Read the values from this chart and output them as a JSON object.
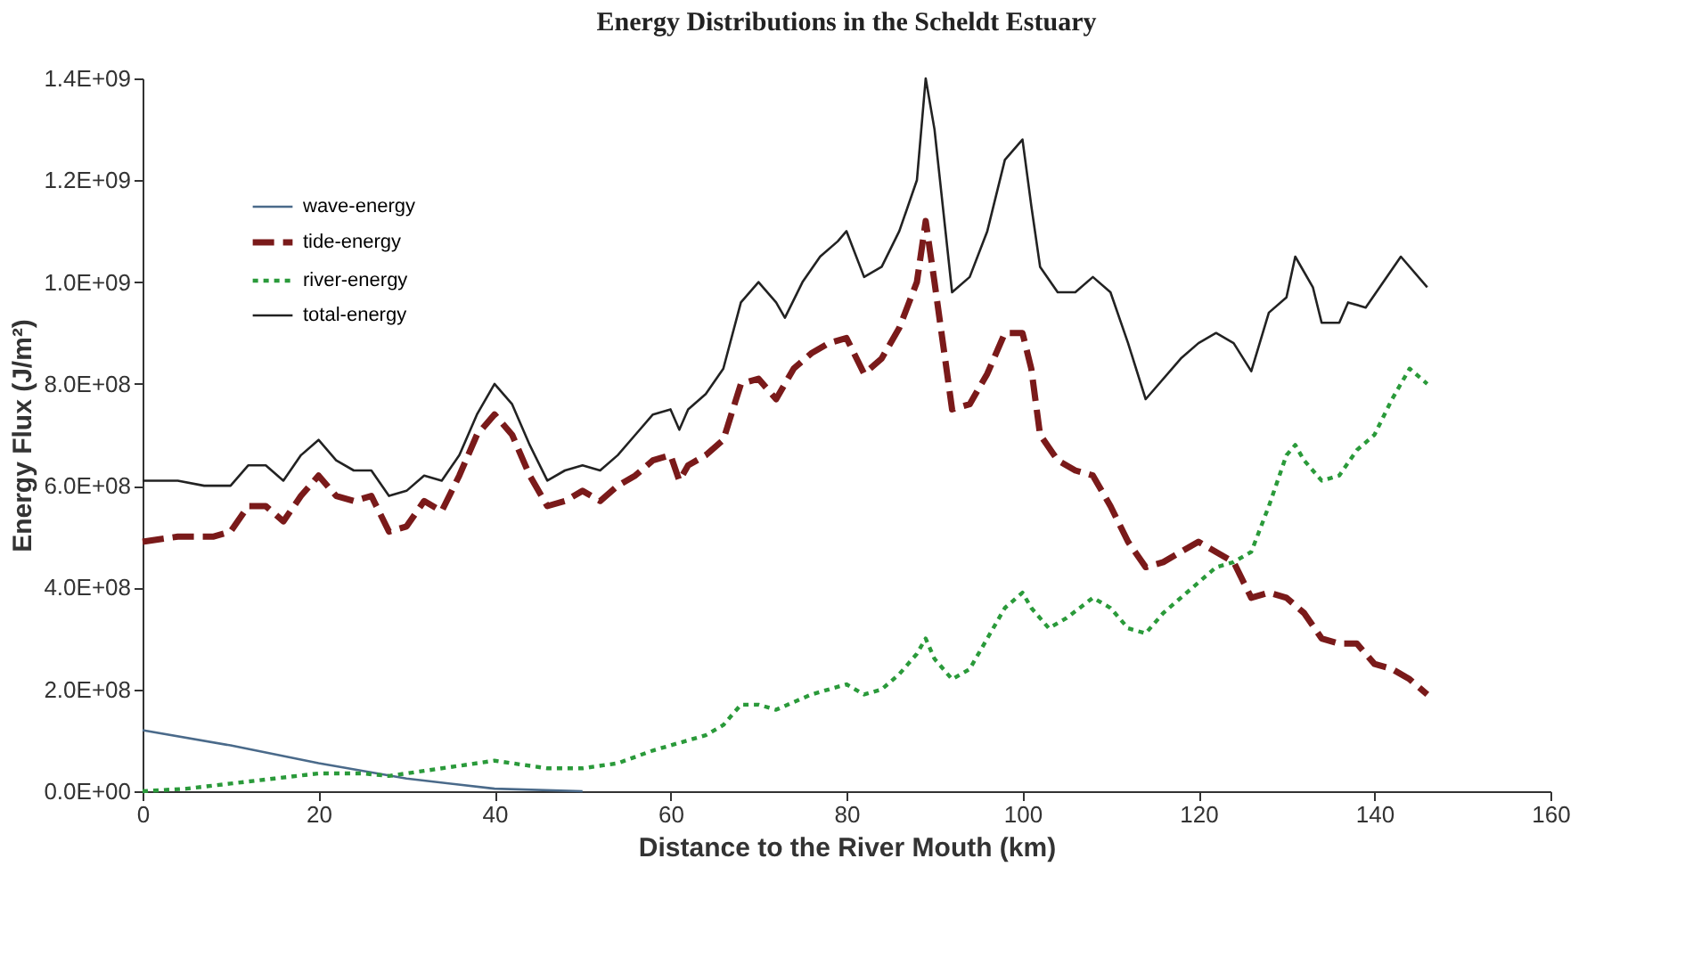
{
  "chart_data": {
    "type": "line",
    "title": "Energy Distributions in the Scheldt Estuary",
    "xlabel": "Distance to the River Mouth (km)",
    "ylabel": "Energy Flux (J/m²)",
    "xlim": [
      0,
      160
    ],
    "xticks": [
      0,
      20,
      40,
      60,
      80,
      100,
      120,
      140,
      160
    ],
    "ylim": [
      0,
      1400000000.0
    ],
    "yticks": [
      {
        "value": 0,
        "label": "0.0E+00"
      },
      {
        "value": 200000000.0,
        "label": "2.0E+08"
      },
      {
        "value": 400000000.0,
        "label": "4.0E+08"
      },
      {
        "value": 600000000.0,
        "label": "6.0E+08"
      },
      {
        "value": 800000000.0,
        "label": "8.0E+08"
      },
      {
        "value": 1000000000.0,
        "label": "1.0E+09"
      },
      {
        "value": 1200000000.0,
        "label": "1.2E+09"
      },
      {
        "value": 1400000000.0,
        "label": "1.4E+09"
      }
    ],
    "grid": false,
    "legend": "top left",
    "marker": "none",
    "series": [
      {
        "name": "wave-energy",
        "color": "#4a6a8a",
        "line_style": "solid",
        "x": [
          0,
          10,
          20,
          30,
          40,
          50
        ],
        "values": [
          120000000.0,
          90000000.0,
          55000000.0,
          25000000.0,
          5000000.0,
          0
        ]
      },
      {
        "name": "tide-energy",
        "color": "#7a1a1a",
        "line_style": "dashed",
        "x": [
          0,
          4,
          8,
          10,
          12,
          14,
          16,
          18,
          20,
          22,
          24,
          26,
          28,
          30,
          32,
          34,
          36,
          38,
          40,
          42,
          44,
          46,
          48,
          50,
          52,
          54,
          56,
          58,
          60,
          61,
          62,
          64,
          66,
          68,
          70,
          72,
          74,
          76,
          78,
          80,
          82,
          84,
          86,
          88,
          89,
          90,
          92,
          94,
          96,
          98,
          100,
          101,
          102,
          104,
          106,
          108,
          110,
          112,
          114,
          116,
          118,
          120,
          122,
          124,
          126,
          128,
          130,
          132,
          134,
          136,
          138,
          140,
          142,
          144,
          146
        ],
        "values": [
          490000000.0,
          500000000.0,
          500000000.0,
          510000000.0,
          560000000.0,
          560000000.0,
          530000000.0,
          580000000.0,
          620000000.0,
          580000000.0,
          570000000.0,
          580000000.0,
          510000000.0,
          520000000.0,
          570000000.0,
          550000000.0,
          620000000.0,
          700000000.0,
          740000000.0,
          700000000.0,
          620000000.0,
          560000000.0,
          570000000.0,
          590000000.0,
          570000000.0,
          600000000.0,
          620000000.0,
          650000000.0,
          660000000.0,
          610000000.0,
          640000000.0,
          660000000.0,
          690000000.0,
          800000000.0,
          810000000.0,
          770000000.0,
          830000000.0,
          860000000.0,
          880000000.0,
          890000000.0,
          820000000.0,
          850000000.0,
          910000000.0,
          1000000000.0,
          1120000000.0,
          1000000000.0,
          750000000.0,
          760000000.0,
          820000000.0,
          900000000.0,
          900000000.0,
          830000000.0,
          700000000.0,
          650000000.0,
          630000000.0,
          620000000.0,
          560000000.0,
          490000000.0,
          440000000.0,
          450000000.0,
          470000000.0,
          490000000.0,
          470000000.0,
          450000000.0,
          380000000.0,
          390000000.0,
          380000000.0,
          350000000.0,
          300000000.0,
          290000000.0,
          290000000.0,
          250000000.0,
          240000000.0,
          220000000.0,
          190000000.0
        ]
      },
      {
        "name": "river-energy",
        "color": "#2a9a3a",
        "line_style": "dotted",
        "x": [
          0,
          5,
          10,
          15,
          20,
          25,
          28,
          32,
          36,
          40,
          42,
          46,
          50,
          54,
          58,
          60,
          62,
          64,
          66,
          68,
          70,
          72,
          76,
          80,
          82,
          84,
          86,
          88,
          89,
          90,
          92,
          94,
          96,
          98,
          100,
          101,
          103,
          105,
          108,
          110,
          112,
          114,
          116,
          118,
          120,
          122,
          124,
          126,
          128,
          130,
          131,
          132,
          134,
          136,
          138,
          140,
          142,
          144,
          146
        ],
        "values": [
          0,
          5000000.0,
          15000000.0,
          25000000.0,
          35000000.0,
          35000000.0,
          30000000.0,
          40000000.0,
          50000000.0,
          60000000.0,
          55000000.0,
          45000000.0,
          45000000.0,
          55000000.0,
          80000000.0,
          90000000.0,
          100000000.0,
          110000000.0,
          130000000.0,
          170000000.0,
          170000000.0,
          160000000.0,
          190000000.0,
          210000000.0,
          190000000.0,
          200000000.0,
          230000000.0,
          270000000.0,
          300000000.0,
          260000000.0,
          220000000.0,
          240000000.0,
          300000000.0,
          360000000.0,
          390000000.0,
          360000000.0,
          320000000.0,
          340000000.0,
          380000000.0,
          360000000.0,
          320000000.0,
          310000000.0,
          350000000.0,
          380000000.0,
          410000000.0,
          440000000.0,
          450000000.0,
          470000000.0,
          560000000.0,
          660000000.0,
          680000000.0,
          650000000.0,
          610000000.0,
          620000000.0,
          670000000.0,
          700000000.0,
          770000000.0,
          830000000.0,
          800000000.0
        ]
      },
      {
        "name": "total-energy",
        "color": "#222222",
        "line_style": "solid",
        "x": [
          0,
          4,
          7,
          10,
          12,
          14,
          16,
          18,
          20,
          22,
          24,
          26,
          28,
          30,
          32,
          34,
          36,
          38,
          40,
          42,
          44,
          46,
          48,
          50,
          52,
          54,
          56,
          58,
          60,
          61,
          62,
          64,
          66,
          68,
          70,
          72,
          73,
          75,
          77,
          79,
          80,
          82,
          84,
          86,
          88,
          89,
          90,
          92,
          94,
          96,
          98,
          100,
          101,
          102,
          104,
          106,
          108,
          110,
          112,
          114,
          118,
          120,
          122,
          124,
          126,
          128,
          130,
          131,
          133,
          134,
          136,
          137,
          139,
          143,
          146
        ],
        "values": [
          610000000.0,
          610000000.0,
          600000000.0,
          600000000.0,
          640000000.0,
          640000000.0,
          610000000.0,
          660000000.0,
          690000000.0,
          650000000.0,
          630000000.0,
          630000000.0,
          580000000.0,
          590000000.0,
          620000000.0,
          610000000.0,
          660000000.0,
          740000000.0,
          800000000.0,
          760000000.0,
          680000000.0,
          610000000.0,
          630000000.0,
          640000000.0,
          630000000.0,
          660000000.0,
          700000000.0,
          740000000.0,
          750000000.0,
          710000000.0,
          750000000.0,
          780000000.0,
          830000000.0,
          960000000.0,
          1000000000.0,
          960000000.0,
          930000000.0,
          1000000000.0,
          1050000000.0,
          1080000000.0,
          1100000000.0,
          1010000000.0,
          1030000000.0,
          1100000000.0,
          1200000000.0,
          1400000000.0,
          1300000000.0,
          980000000.0,
          1010000000.0,
          1100000000.0,
          1240000000.0,
          1280000000.0,
          1150000000.0,
          1030000000.0,
          980000000.0,
          980000000.0,
          1010000000.0,
          980000000.0,
          880000000.0,
          770000000.0,
          850000000.0,
          880000000.0,
          900000000.0,
          880000000.0,
          825000000.0,
          940000000.0,
          970000000.0,
          1050000000.0,
          990000000.0,
          920000000.0,
          920000000.0,
          960000000.0,
          950000000.0,
          1050000000.0,
          990000000.0
        ]
      }
    ]
  }
}
